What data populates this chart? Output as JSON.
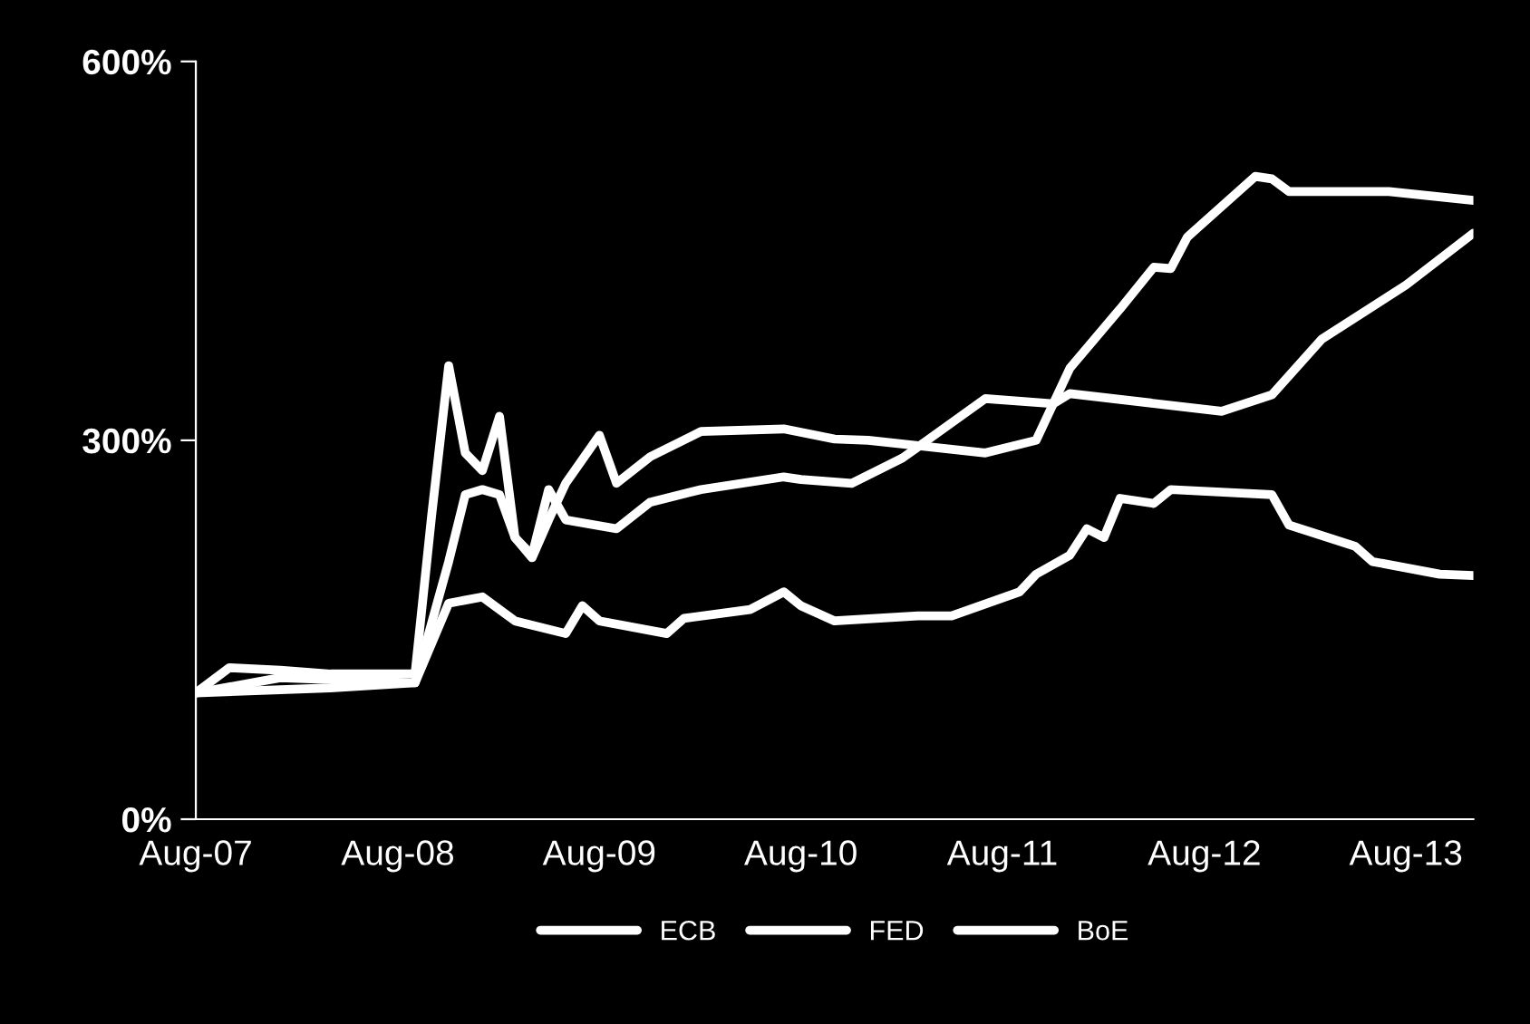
{
  "chart_data": {
    "type": "line",
    "x": [
      "2007-08",
      "2007-10",
      "2008-01",
      "2008-04",
      "2008-09",
      "2008-10",
      "2008-11",
      "2008-12",
      "2009-01",
      "2009-02",
      "2009-03",
      "2009-04",
      "2009-05",
      "2009-06",
      "2009-08",
      "2009-09",
      "2009-11",
      "2010-02",
      "2010-07",
      "2010-10",
      "2010-12",
      "2011-07",
      "2011-10",
      "2011-12",
      "2012-03",
      "2012-05",
      "2012-06",
      "2012-07",
      "2012-11",
      "2012-12",
      "2013-01",
      "2013-07",
      "2013-12"
    ],
    "series": [
      {
        "name": "ECB",
        "color": "#ffffff",
        "x": [
          "2007-08",
          "2008-04",
          "2008-09",
          "2008-11",
          "2009-01",
          "2009-03",
          "2009-06",
          "2009-07",
          "2009-08",
          "2009-12",
          "2010-01",
          "2010-05",
          "2010-07",
          "2010-08",
          "2010-10",
          "2011-03",
          "2011-05",
          "2011-09",
          "2011-10",
          "2011-12",
          "2012-01",
          "2012-02",
          "2012-03",
          "2012-05",
          "2012-06",
          "2012-12",
          "2013-01",
          "2013-05",
          "2013-06",
          "2013-10",
          "2013-12"
        ],
        "values": [
          100,
          104,
          108,
          171,
          176,
          157,
          147,
          169,
          157,
          147,
          159,
          166,
          180,
          169,
          157,
          161,
          161,
          180,
          194,
          209,
          230,
          223,
          254,
          250,
          261,
          257,
          233,
          216,
          204,
          194,
          193
        ]
      },
      {
        "name": "FED",
        "color": "#ffffff",
        "x": [
          "2007-08",
          "2008-01",
          "2008-09",
          "2008-11",
          "2008-12",
          "2009-01",
          "2009-02",
          "2009-03",
          "2009-04",
          "2009-05",
          "2009-06",
          "2009-09",
          "2009-11",
          "2010-02",
          "2010-07",
          "2010-08",
          "2010-11",
          "2011-02",
          "2011-07",
          "2011-11",
          "2011-12",
          "2012-09",
          "2012-12",
          "2013-03",
          "2013-08",
          "2013-12"
        ],
        "values": [
          100,
          112,
          108,
          204,
          257,
          261,
          257,
          223,
          209,
          261,
          237,
          230,
          251,
          261,
          271,
          269,
          266,
          286,
          333,
          329,
          337,
          323,
          336,
          380,
          423,
          464
        ]
      },
      {
        "name": "BoE",
        "color": "#ffffff",
        "values": [
          100,
          120,
          118,
          115,
          115,
          240,
          359,
          290,
          276,
          319,
          223,
          207,
          237,
          266,
          304,
          266,
          287,
          307,
          309,
          301,
          300,
          290,
          300,
          357,
          404,
          437,
          436,
          461,
          509,
          507,
          497,
          497,
          490
        ]
      }
    ],
    "xlim": [
      "2007-08",
      "2013-12"
    ],
    "xticks": [
      {
        "value": "2007-08",
        "label": "Aug-07"
      },
      {
        "value": "2008-08",
        "label": "Aug-08"
      },
      {
        "value": "2009-08",
        "label": "Aug-09"
      },
      {
        "value": "2010-08",
        "label": "Aug-10"
      },
      {
        "value": "2011-08",
        "label": "Aug-11"
      },
      {
        "value": "2012-08",
        "label": "Aug-12"
      },
      {
        "value": "2013-08",
        "label": "Aug-13"
      }
    ],
    "ylim": [
      0,
      600
    ],
    "yticks": [
      {
        "value": 0,
        "label": "0%"
      },
      {
        "value": 300,
        "label": "300%"
      },
      {
        "value": 600,
        "label": "600%"
      }
    ],
    "legend": "bottom",
    "grid": false
  }
}
